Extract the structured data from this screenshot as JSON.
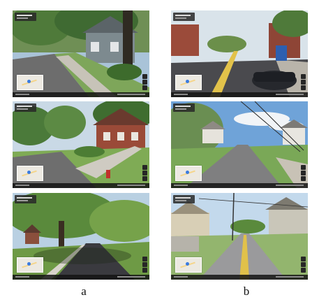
{
  "figure": {
    "columns": [
      {
        "label": "a"
      },
      {
        "label": "b"
      }
    ]
  }
}
